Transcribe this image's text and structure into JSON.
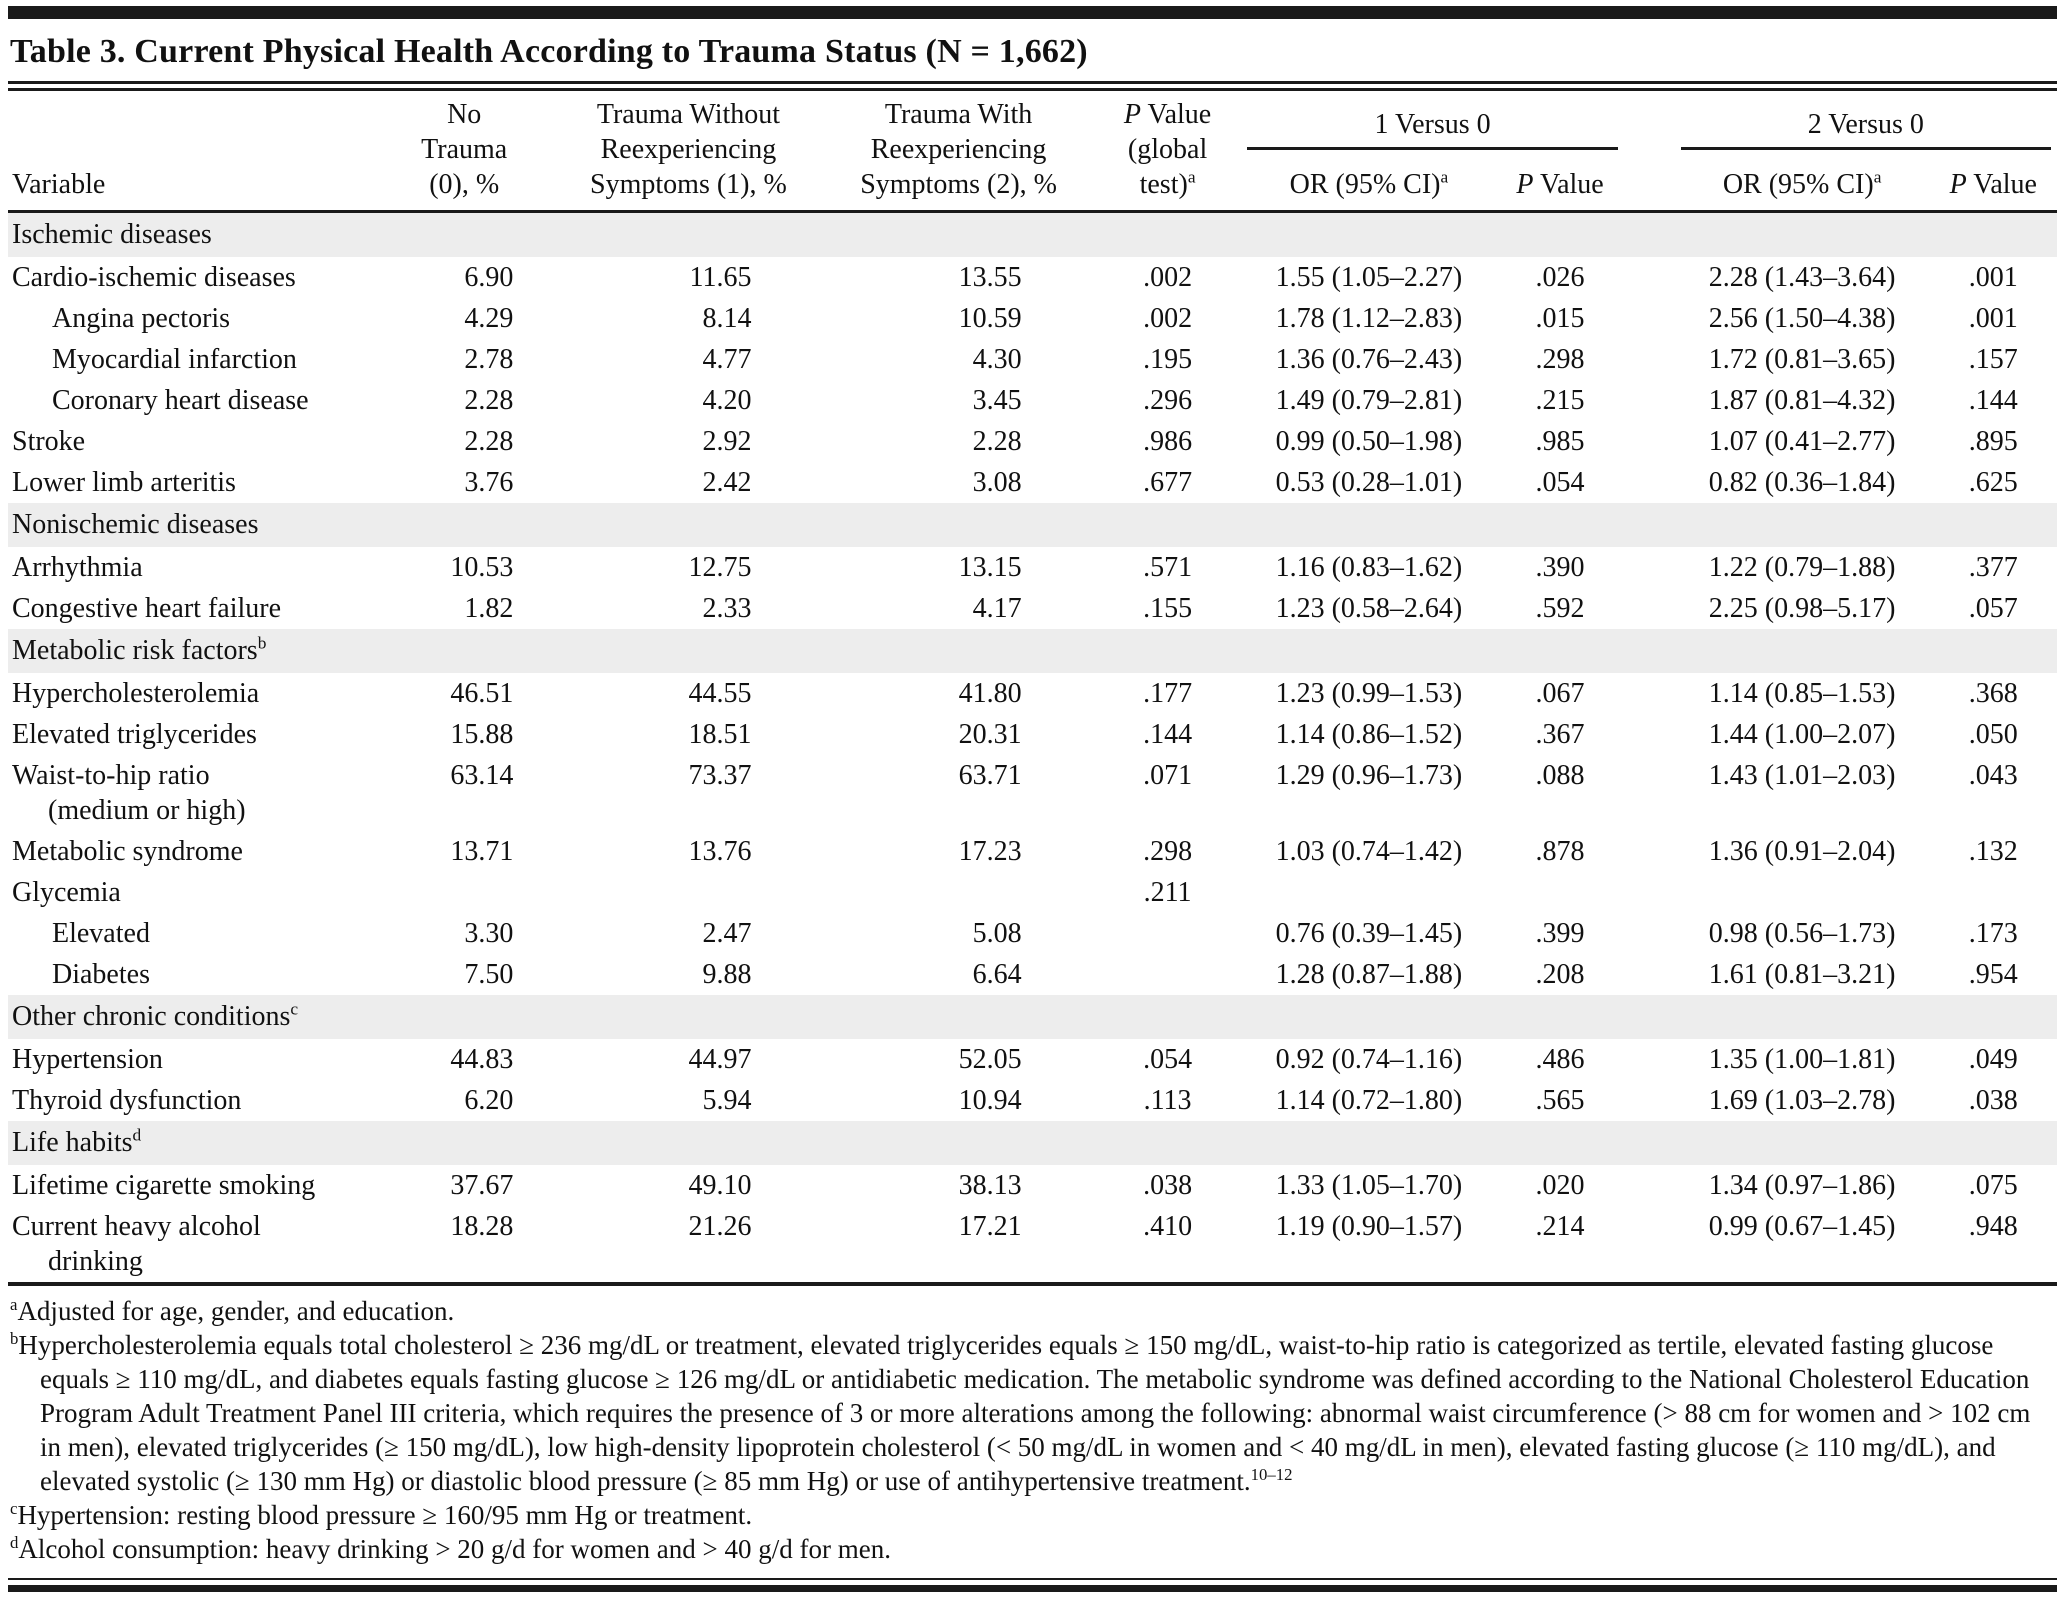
{
  "title": "Table 3. Current Physical Health According to Trauma Status (N = 1,662)",
  "header": {
    "variable": "Variable",
    "no_trauma": [
      "No",
      "Trauma",
      "(0), %"
    ],
    "trauma_without": [
      "Trauma Without",
      "Reexperiencing",
      "Symptoms (1), %"
    ],
    "trauma_with": [
      "Trauma With",
      "Reexperiencing",
      "Symptoms (2), %"
    ],
    "p_global": {
      "l1_italic": "P",
      "l1_rest": " Value",
      "l2": "(global",
      "l3": "test)",
      "sup": "a"
    },
    "group_1": "1 Versus 0",
    "group_2": "2 Versus 0",
    "or_header": {
      "text": "OR (95% CI)",
      "sup": "a"
    },
    "p_header": {
      "italic": "P",
      "rest": " Value"
    }
  },
  "rows": [
    {
      "type": "section",
      "label": "Ischemic diseases",
      "sup": ""
    },
    {
      "type": "data",
      "indent": false,
      "label": "Cardio-ischemic diseases",
      "label2": "",
      "p0": "6.90",
      "p1": "11.65",
      "p2": "13.55",
      "pg": ".002",
      "or1": "1.55 (1.05–2.27)",
      "pv1": ".026",
      "or2": "2.28 (1.43–3.64)",
      "pv2": ".001"
    },
    {
      "type": "data",
      "indent": true,
      "label": "Angina pectoris",
      "label2": "",
      "p0": "4.29",
      "p1": "8.14",
      "p2": "10.59",
      "pg": ".002",
      "or1": "1.78 (1.12–2.83)",
      "pv1": ".015",
      "or2": "2.56 (1.50–4.38)",
      "pv2": ".001"
    },
    {
      "type": "data",
      "indent": true,
      "label": "Myocardial infarction",
      "label2": "",
      "p0": "2.78",
      "p1": "4.77",
      "p2": "4.30",
      "pg": ".195",
      "or1": "1.36 (0.76–2.43)",
      "pv1": ".298",
      "or2": "1.72 (0.81–3.65)",
      "pv2": ".157"
    },
    {
      "type": "data",
      "indent": true,
      "label": "Coronary heart disease",
      "label2": "",
      "p0": "2.28",
      "p1": "4.20",
      "p2": "3.45",
      "pg": ".296",
      "or1": "1.49 (0.79–2.81)",
      "pv1": ".215",
      "or2": "1.87 (0.81–4.32)",
      "pv2": ".144"
    },
    {
      "type": "data",
      "indent": false,
      "label": "Stroke",
      "label2": "",
      "p0": "2.28",
      "p1": "2.92",
      "p2": "2.28",
      "pg": ".986",
      "or1": "0.99 (0.50–1.98)",
      "pv1": ".985",
      "or2": "1.07 (0.41–2.77)",
      "pv2": ".895"
    },
    {
      "type": "data",
      "indent": false,
      "label": "Lower limb arteritis",
      "label2": "",
      "p0": "3.76",
      "p1": "2.42",
      "p2": "3.08",
      "pg": ".677",
      "or1": "0.53 (0.28–1.01)",
      "pv1": ".054",
      "or2": "0.82 (0.36–1.84)",
      "pv2": ".625"
    },
    {
      "type": "section",
      "label": "Nonischemic diseases",
      "sup": ""
    },
    {
      "type": "data",
      "indent": false,
      "label": "Arrhythmia",
      "label2": "",
      "p0": "10.53",
      "p1": "12.75",
      "p2": "13.15",
      "pg": ".571",
      "or1": "1.16 (0.83–1.62)",
      "pv1": ".390",
      "or2": "1.22 (0.79–1.88)",
      "pv2": ".377"
    },
    {
      "type": "data",
      "indent": false,
      "label": "Congestive heart failure",
      "label2": "",
      "p0": "1.82",
      "p1": "2.33",
      "p2": "4.17",
      "pg": ".155",
      "or1": "1.23 (0.58–2.64)",
      "pv1": ".592",
      "or2": "2.25 (0.98–5.17)",
      "pv2": ".057"
    },
    {
      "type": "section",
      "label": "Metabolic risk factors",
      "sup": "b"
    },
    {
      "type": "data",
      "indent": false,
      "label": "Hypercholesterolemia",
      "label2": "",
      "p0": "46.51",
      "p1": "44.55",
      "p2": "41.80",
      "pg": ".177",
      "or1": "1.23 (0.99–1.53)",
      "pv1": ".067",
      "or2": "1.14 (0.85–1.53)",
      "pv2": ".368"
    },
    {
      "type": "data",
      "indent": false,
      "label": "Elevated triglycerides",
      "label2": "",
      "p0": "15.88",
      "p1": "18.51",
      "p2": "20.31",
      "pg": ".144",
      "or1": "1.14 (0.86–1.52)",
      "pv1": ".367",
      "or2": "1.44 (1.00–2.07)",
      "pv2": ".050"
    },
    {
      "type": "data",
      "indent": false,
      "label": "Waist-to-hip ratio",
      "label2": "(medium or high)",
      "p0": "63.14",
      "p1": "73.37",
      "p2": "63.71",
      "pg": ".071",
      "or1": "1.29 (0.96–1.73)",
      "pv1": ".088",
      "or2": "1.43 (1.01–2.03)",
      "pv2": ".043"
    },
    {
      "type": "data",
      "indent": false,
      "label": "Metabolic syndrome",
      "label2": "",
      "p0": "13.71",
      "p1": "13.76",
      "p2": "17.23",
      "pg": ".298",
      "or1": "1.03 (0.74–1.42)",
      "pv1": ".878",
      "or2": "1.36 (0.91–2.04)",
      "pv2": ".132"
    },
    {
      "type": "data",
      "indent": false,
      "label": "Glycemia",
      "label2": "",
      "p0": "",
      "p1": "",
      "p2": "",
      "pg": ".211",
      "or1": "",
      "pv1": "",
      "or2": "",
      "pv2": ""
    },
    {
      "type": "data",
      "indent": true,
      "label": "Elevated",
      "label2": "",
      "p0": "3.30",
      "p1": "2.47",
      "p2": "5.08",
      "pg": "",
      "or1": "0.76 (0.39–1.45)",
      "pv1": ".399",
      "or2": "0.98 (0.56–1.73)",
      "pv2": ".173"
    },
    {
      "type": "data",
      "indent": true,
      "label": "Diabetes",
      "label2": "",
      "p0": "7.50",
      "p1": "9.88",
      "p2": "6.64",
      "pg": "",
      "or1": "1.28 (0.87–1.88)",
      "pv1": ".208",
      "or2": "1.61 (0.81–3.21)",
      "pv2": ".954"
    },
    {
      "type": "section",
      "label": "Other chronic conditions",
      "sup": "c"
    },
    {
      "type": "data",
      "indent": false,
      "label": "Hypertension",
      "label2": "",
      "p0": "44.83",
      "p1": "44.97",
      "p2": "52.05",
      "pg": ".054",
      "or1": "0.92 (0.74–1.16)",
      "pv1": ".486",
      "or2": "1.35 (1.00–1.81)",
      "pv2": ".049"
    },
    {
      "type": "data",
      "indent": false,
      "label": "Thyroid dysfunction",
      "label2": "",
      "p0": "6.20",
      "p1": "5.94",
      "p2": "10.94",
      "pg": ".113",
      "or1": "1.14 (0.72–1.80)",
      "pv1": ".565",
      "or2": "1.69 (1.03–2.78)",
      "pv2": ".038"
    },
    {
      "type": "section",
      "label": "Life habits",
      "sup": "d"
    },
    {
      "type": "data",
      "indent": false,
      "label": "Lifetime cigarette smoking",
      "label2": "",
      "p0": "37.67",
      "p1": "49.10",
      "p2": "38.13",
      "pg": ".038",
      "or1": "1.33 (1.05–1.70)",
      "pv1": ".020",
      "or2": "1.34 (0.97–1.86)",
      "pv2": ".075"
    },
    {
      "type": "data",
      "indent": false,
      "label": "Current heavy alcohol",
      "label2": "drinking",
      "p0": "18.28",
      "p1": "21.26",
      "p2": "17.21",
      "pg": ".410",
      "or1": "1.19 (0.90–1.57)",
      "pv1": ".214",
      "or2": "0.99 (0.67–1.45)",
      "pv2": ".948"
    }
  ],
  "footnotes": [
    {
      "sup": "a",
      "text": "Adjusted for age, gender, and education.",
      "ref": ""
    },
    {
      "sup": "b",
      "text": "Hypercholesterolemia equals total cholesterol ≥ 236 mg/dL or treatment, elevated triglycerides equals ≥ 150 mg/dL,  waist-to-hip ratio is categorized as tertile, elevated fasting glucose equals ≥ 110 mg/dL, and diabetes equals fasting glucose ≥ 126 mg/dL or antidiabetic medication. The metabolic syndrome was defined according to the National Cholesterol Education Program Adult Treatment Panel III criteria, which requires the presence of 3 or more alterations among the following: abnormal waist circumference (> 88 cm for women and > 102 cm in men), elevated triglycerides (≥ 150 mg/dL), low high-density lipoprotein cholesterol (< 50 mg/dL in women and < 40 mg/dL in men), elevated fasting glucose (≥ 110 mg/dL), and elevated systolic (≥ 130 mm Hg) or diastolic blood pressure (≥ 85 mm Hg) or use of antihypertensive treatment.",
      "ref": "10–12"
    },
    {
      "sup": "c",
      "text": "Hypertension: resting blood pressure ≥ 160/95 mm Hg or treatment.",
      "ref": ""
    },
    {
      "sup": "d",
      "text": "Alcohol consumption: heavy drinking > 20 g/d for women and > 40 g/d for men.",
      "ref": ""
    }
  ]
}
